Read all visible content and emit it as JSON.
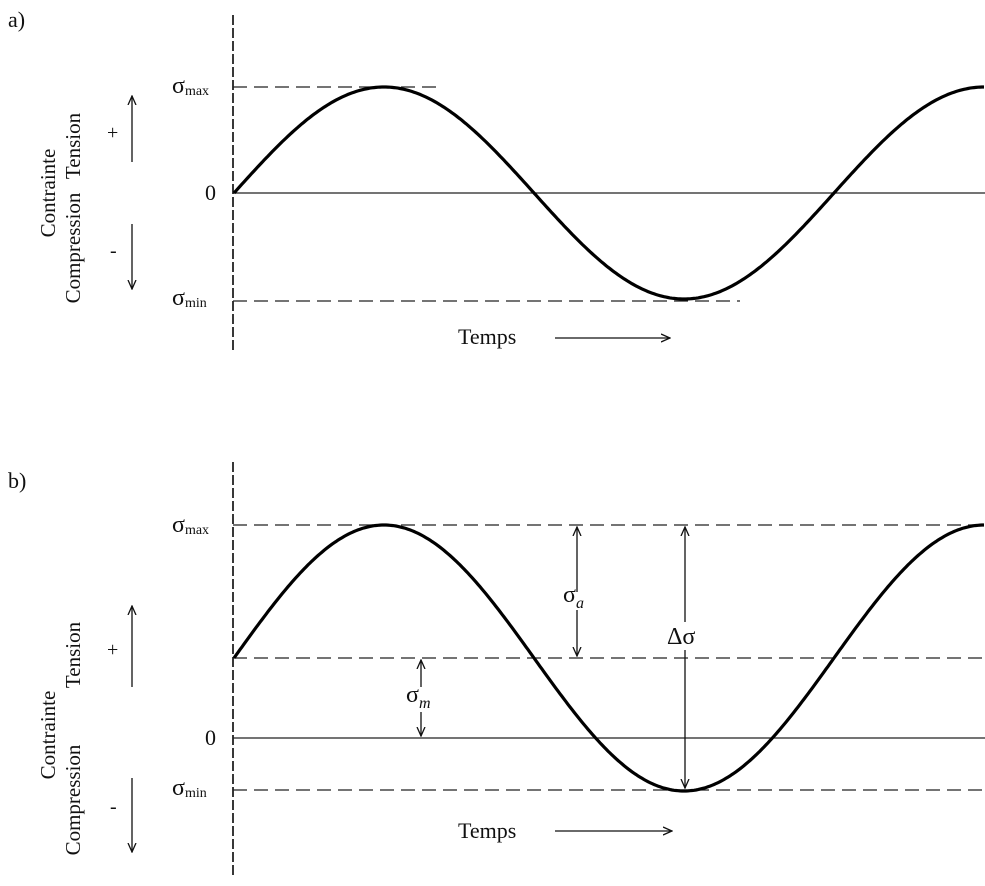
{
  "panel_a": {
    "label": "a)",
    "y_labels": {
      "sigma": "σ",
      "max_sub": "max",
      "min_sub": "min",
      "zero": "0"
    },
    "side": {
      "plus": "+",
      "minus": "-",
      "contrainte": "Contrainte",
      "tension": "Tension",
      "compression": "Compression"
    },
    "time_label": "Temps"
  },
  "panel_b": {
    "label": "b)",
    "y_labels": {
      "sigma": "σ",
      "max_sub": "max",
      "min_sub": "min",
      "zero": "0"
    },
    "side": {
      "plus": "+",
      "minus": "-",
      "contrainte": "Contrainte",
      "tension": "Tension",
      "compression": "Compression"
    },
    "time_label": "Temps",
    "annotations": {
      "sigma": "σ",
      "a_sub": "a",
      "m_sub": "m",
      "delta_sigma": "Δσ"
    }
  }
}
